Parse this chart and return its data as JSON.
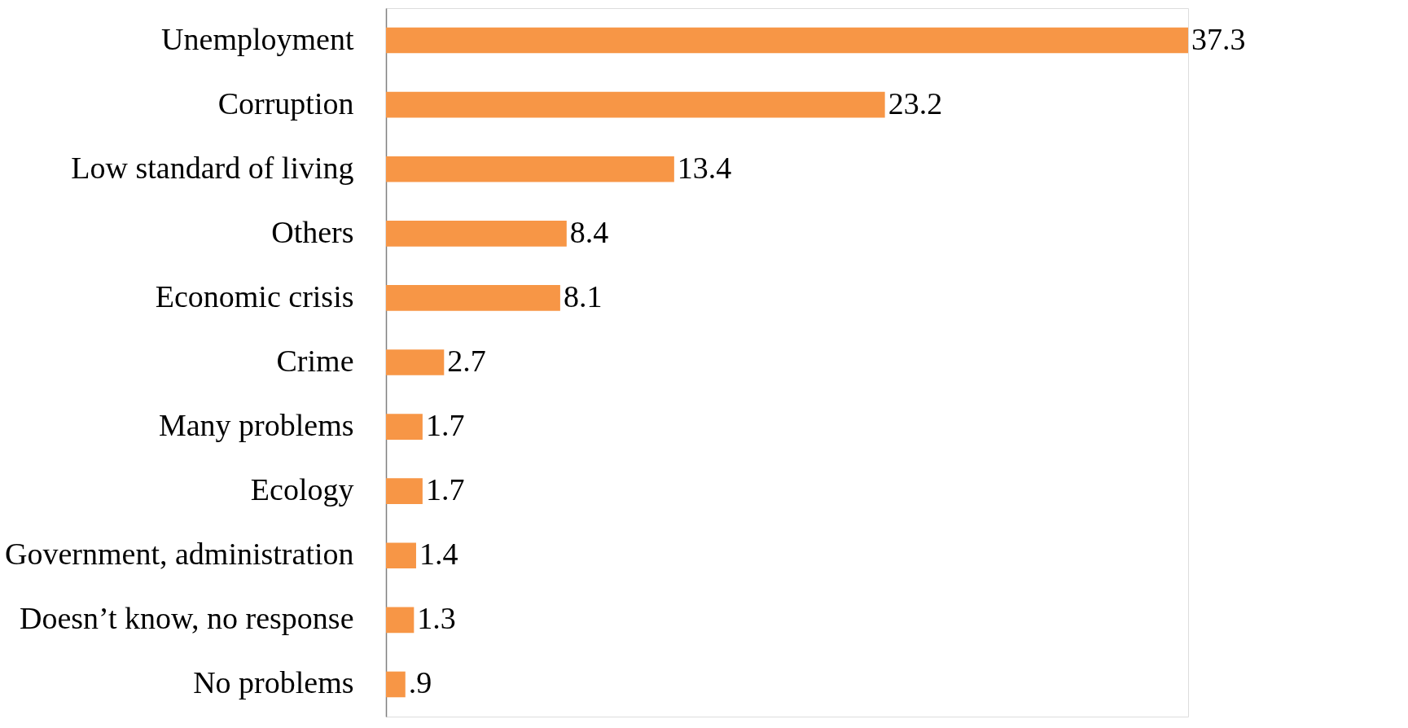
{
  "chart_data": {
    "type": "bar",
    "orientation": "horizontal",
    "categories": [
      "Unemployment",
      "Corruption",
      "Low standard of living",
      "Others",
      "Economic crisis",
      "Crime",
      "Many problems",
      "Ecology",
      "Government, administration",
      "Doesn’t know, no response",
      "No problems"
    ],
    "values": [
      37.3,
      23.2,
      13.4,
      8.4,
      8.1,
      2.7,
      1.7,
      1.7,
      1.4,
      1.3,
      0.9
    ],
    "value_labels": [
      "37.3",
      "23.2",
      "13.4",
      "8.4",
      "8.1",
      "2.7",
      "1.7",
      "1.7",
      "1.4",
      "1.3",
      ".9"
    ],
    "color": "#f79646"
  }
}
